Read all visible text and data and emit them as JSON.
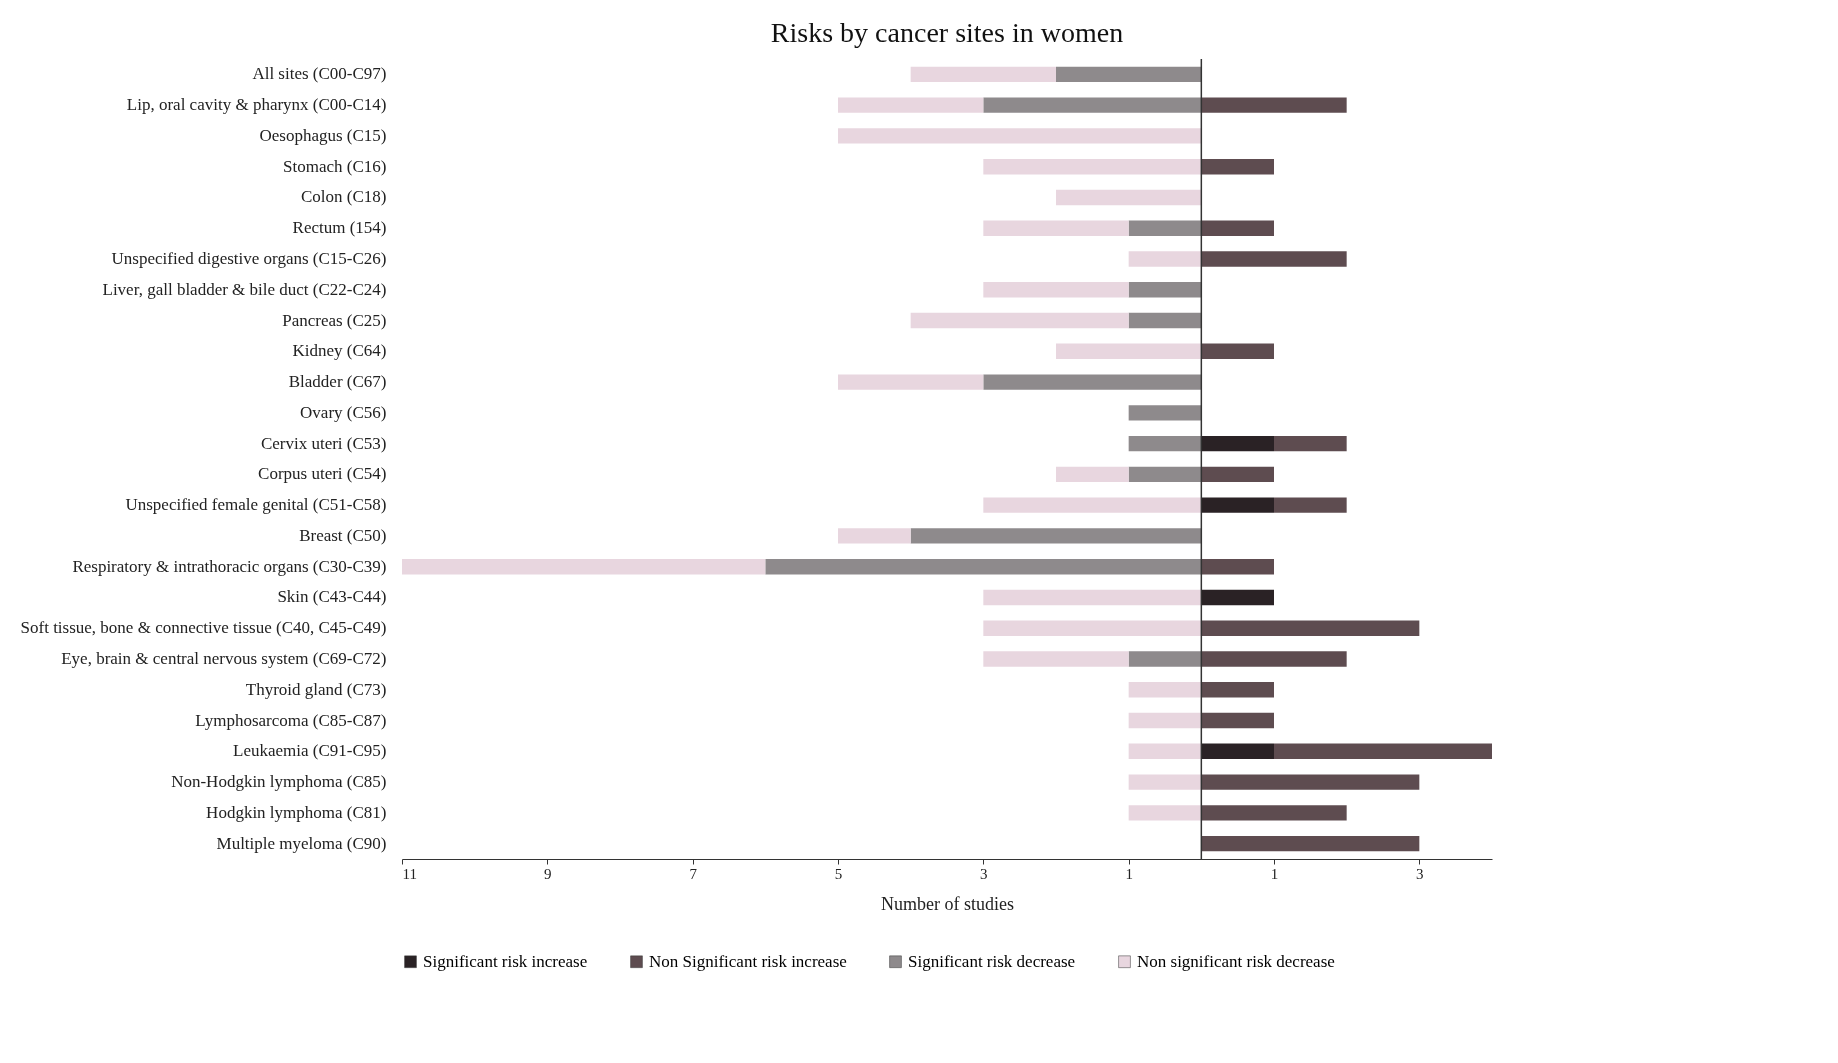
{
  "chart_data": {
    "type": "bar",
    "title": "Risks by cancer sites in women",
    "xlabel": "Number of studies",
    "orientation": "horizontal",
    "stacked": true,
    "legend": "bottom",
    "grid": false,
    "categories": [
      "All sites (C00-C97)",
      "Lip, oral cavity & pharynx (C00-C14)",
      "Oesophagus (C15)",
      "Stomach (C16)",
      "Colon (C18)",
      "Rectum (154)",
      "Unspecified digestive organs (C15-C26)",
      "Liver, gall bladder & bile duct (C22-C24)",
      "Pancreas (C25)",
      "Kidney (C64)",
      "Bladder (C67)",
      "Ovary (C56)",
      "Cervix uteri (C53)",
      "Corpus uteri (C54)",
      "Unspecified female genital (C51-C58)",
      "Breast (C50)",
      "Respiratory & intrathoracic organs (C30-C39)",
      "Skin (C43-C44)",
      "Soft tissue, bone & connective tissue (C40, C45-C49)",
      "Eye, brain & central nervous system (C69-C72)",
      "Thyroid gland (C73)",
      "Lymphosarcoma (C85-C87)",
      "Leukaemia (C91-C95)",
      "Non-Hodgkin lymphoma (C85)",
      "Hodgkin lymphoma (C81)",
      "Multiple myeloma (C90)"
    ],
    "xlim": [
      -11,
      4
    ],
    "xticks": [
      {
        "value": -11,
        "label": "11"
      },
      {
        "value": -9,
        "label": "9"
      },
      {
        "value": -7,
        "label": "7"
      },
      {
        "value": -5,
        "label": "5"
      },
      {
        "value": -3,
        "label": "3"
      },
      {
        "value": -1,
        "label": "1"
      },
      1,
      3
    ],
    "ref_lines": [
      {
        "axis": "x",
        "value": 0,
        "color": "#333333"
      }
    ],
    "series": [
      {
        "name": "Significant risk increase",
        "color": "#2a2225",
        "values": [
          null,
          null,
          null,
          null,
          null,
          null,
          null,
          null,
          null,
          null,
          null,
          null,
          1,
          null,
          1,
          null,
          null,
          1,
          null,
          null,
          null,
          null,
          1,
          null,
          null,
          null
        ]
      },
      {
        "name": "Non Significant risk increase",
        "color": "#5e4c50",
        "values": [
          null,
          2,
          null,
          1,
          null,
          1,
          2,
          null,
          null,
          1,
          null,
          null,
          1,
          1,
          1,
          null,
          1,
          null,
          3,
          2,
          1,
          1,
          3,
          3,
          2,
          3
        ]
      },
      {
        "name": "Significant risk decrease",
        "color": "#8e8a8c",
        "values": [
          -2,
          -3,
          null,
          null,
          null,
          -1,
          null,
          -1,
          -1,
          null,
          -3,
          -1,
          -1,
          -1,
          null,
          -4,
          -6,
          null,
          null,
          -1,
          null,
          null,
          null,
          null,
          null,
          null
        ]
      },
      {
        "name": "Non significant risk decrease",
        "color": "#e8d6df",
        "values": [
          -2,
          -2,
          -5,
          -3,
          -2,
          -2,
          -1,
          -2,
          -3,
          -2,
          -2,
          null,
          null,
          -1,
          -3,
          -1,
          -5,
          -3,
          -3,
          -2,
          -1,
          -1,
          -1,
          -1,
          -1,
          null
        ]
      }
    ]
  }
}
